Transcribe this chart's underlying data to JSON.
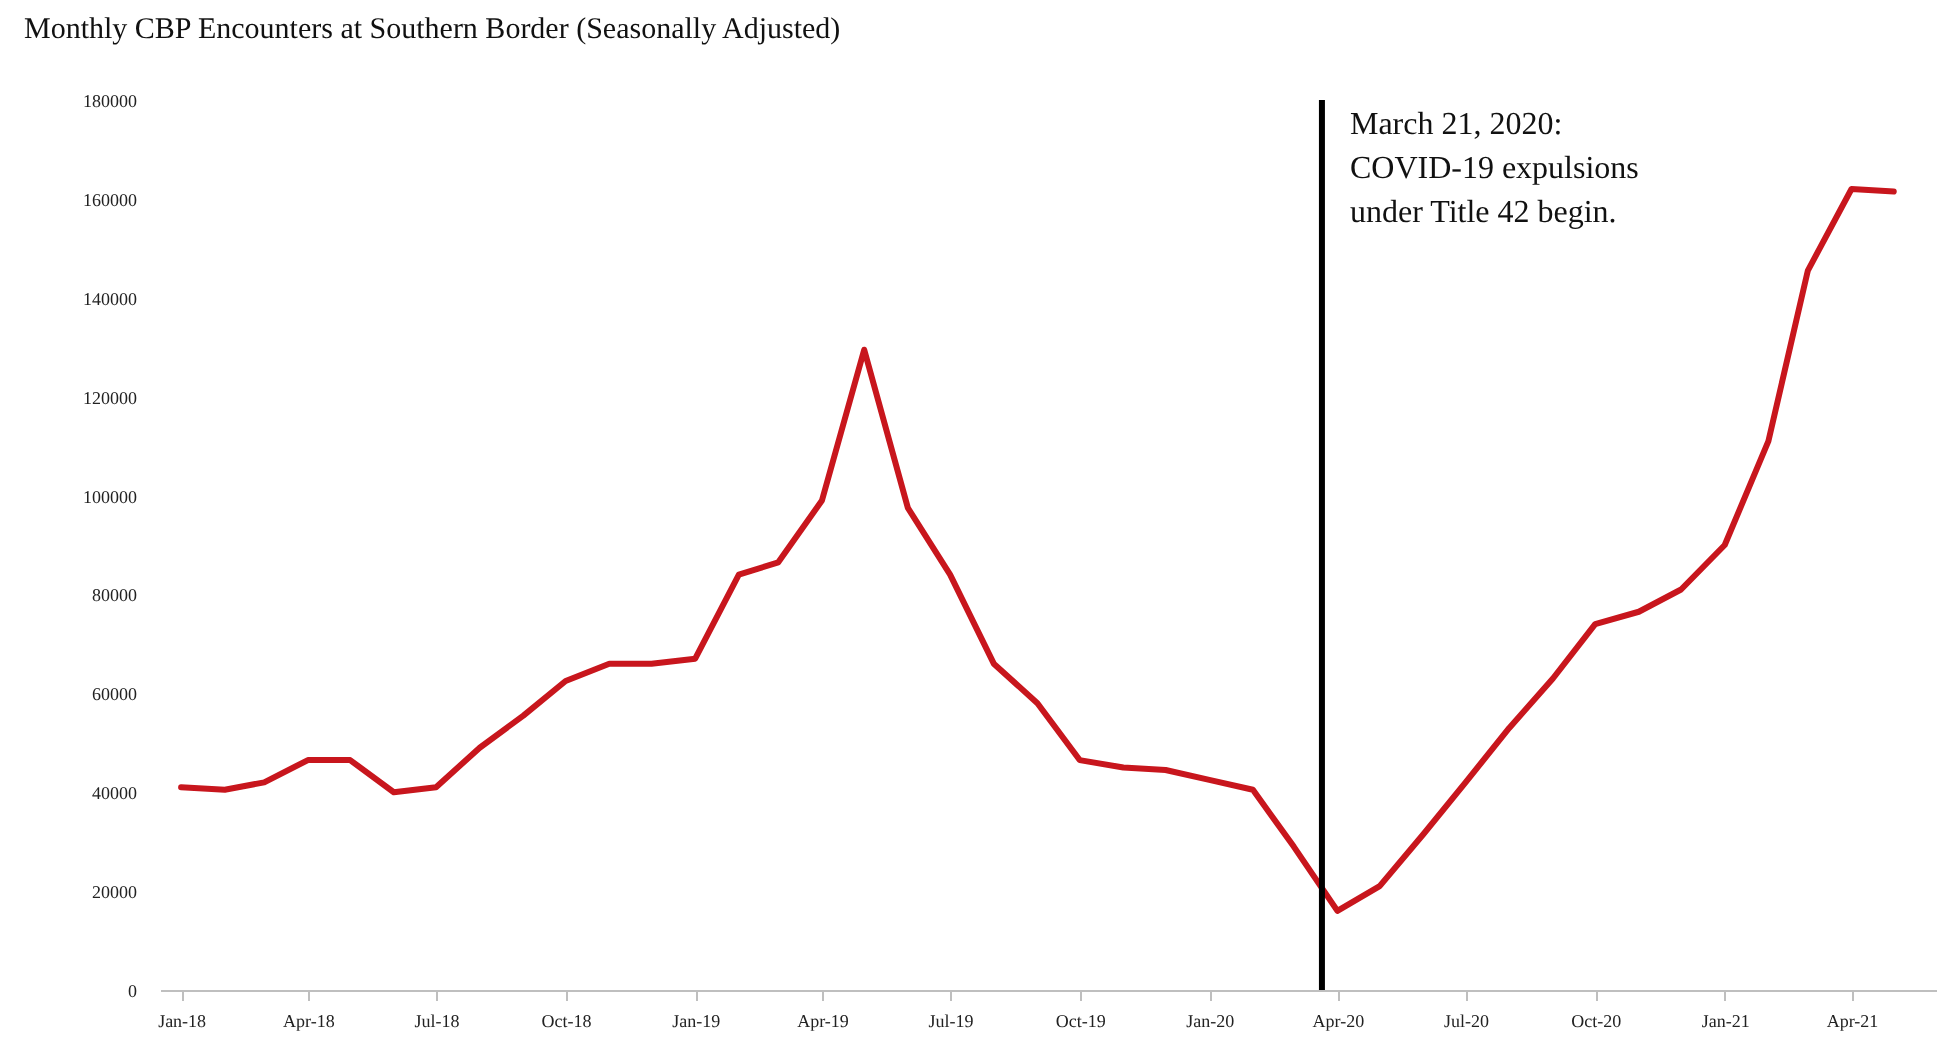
{
  "chart_data": {
    "type": "line",
    "title": "Monthly CBP Encounters at Southern Border (Seasonally Adjusted)",
    "x": [
      "2018-01",
      "2018-02",
      "2018-03",
      "2018-04",
      "2018-05",
      "2018-06",
      "2018-07",
      "2018-08",
      "2018-09",
      "2018-10",
      "2018-11",
      "2018-12",
      "2019-01",
      "2019-02",
      "2019-03",
      "2019-04",
      "2019-05",
      "2019-06",
      "2019-07",
      "2019-08",
      "2019-09",
      "2019-10",
      "2019-11",
      "2019-12",
      "2020-01",
      "2020-02",
      "2020-03",
      "2020-04",
      "2020-05",
      "2020-06",
      "2020-07",
      "2020-08",
      "2020-09",
      "2020-10",
      "2020-11",
      "2020-12",
      "2021-01",
      "2021-02",
      "2021-03",
      "2021-04",
      "2021-05"
    ],
    "series": [
      {
        "color": "#c8161d",
        "values": [
          41000,
          40500,
          42000,
          46500,
          46500,
          40000,
          41000,
          49000,
          55500,
          62500,
          66000,
          66000,
          67000,
          84000,
          86500,
          99000,
          129500,
          97500,
          84000,
          66000,
          58000,
          46500,
          45000,
          44500,
          42500,
          40500,
          29000,
          16000,
          21000,
          31500,
          42000,
          53000,
          63000,
          74000,
          76500,
          81000,
          90000,
          111000,
          145500,
          162000,
          161500
        ]
      }
    ],
    "xlim": [
      "2017-12-17",
      "2021-05-31"
    ],
    "xticks": [
      {
        "value": "2018-01",
        "label": "Jan-18"
      },
      {
        "value": "2018-04",
        "label": "Apr-18"
      },
      {
        "value": "2018-07",
        "label": "Jul-18"
      },
      {
        "value": "2018-10",
        "label": "Oct-18"
      },
      {
        "value": "2019-01",
        "label": "Jan-19"
      },
      {
        "value": "2019-04",
        "label": "Apr-19"
      },
      {
        "value": "2019-07",
        "label": "Jul-19"
      },
      {
        "value": "2019-10",
        "label": "Oct-19"
      },
      {
        "value": "2020-01",
        "label": "Jan-20"
      },
      {
        "value": "2020-04",
        "label": "Apr-20"
      },
      {
        "value": "2020-07",
        "label": "Jul-20"
      },
      {
        "value": "2020-10",
        "label": "Oct-20"
      },
      {
        "value": "2021-01",
        "label": "Jan-21"
      },
      {
        "value": "2021-04",
        "label": "Apr-21"
      }
    ],
    "ylim": [
      0,
      180000
    ],
    "yticks": [
      0,
      20000,
      40000,
      60000,
      80000,
      100000,
      120000,
      140000,
      160000,
      180000
    ],
    "ref_lines": [
      {
        "axis": "x",
        "value": "2020-03-21",
        "label": "March 21, 2020: COVID-19 expulsions under Title 42 begin.",
        "color": "#000000"
      }
    ],
    "grid": false,
    "marker": "none",
    "line_style": "solid"
  }
}
